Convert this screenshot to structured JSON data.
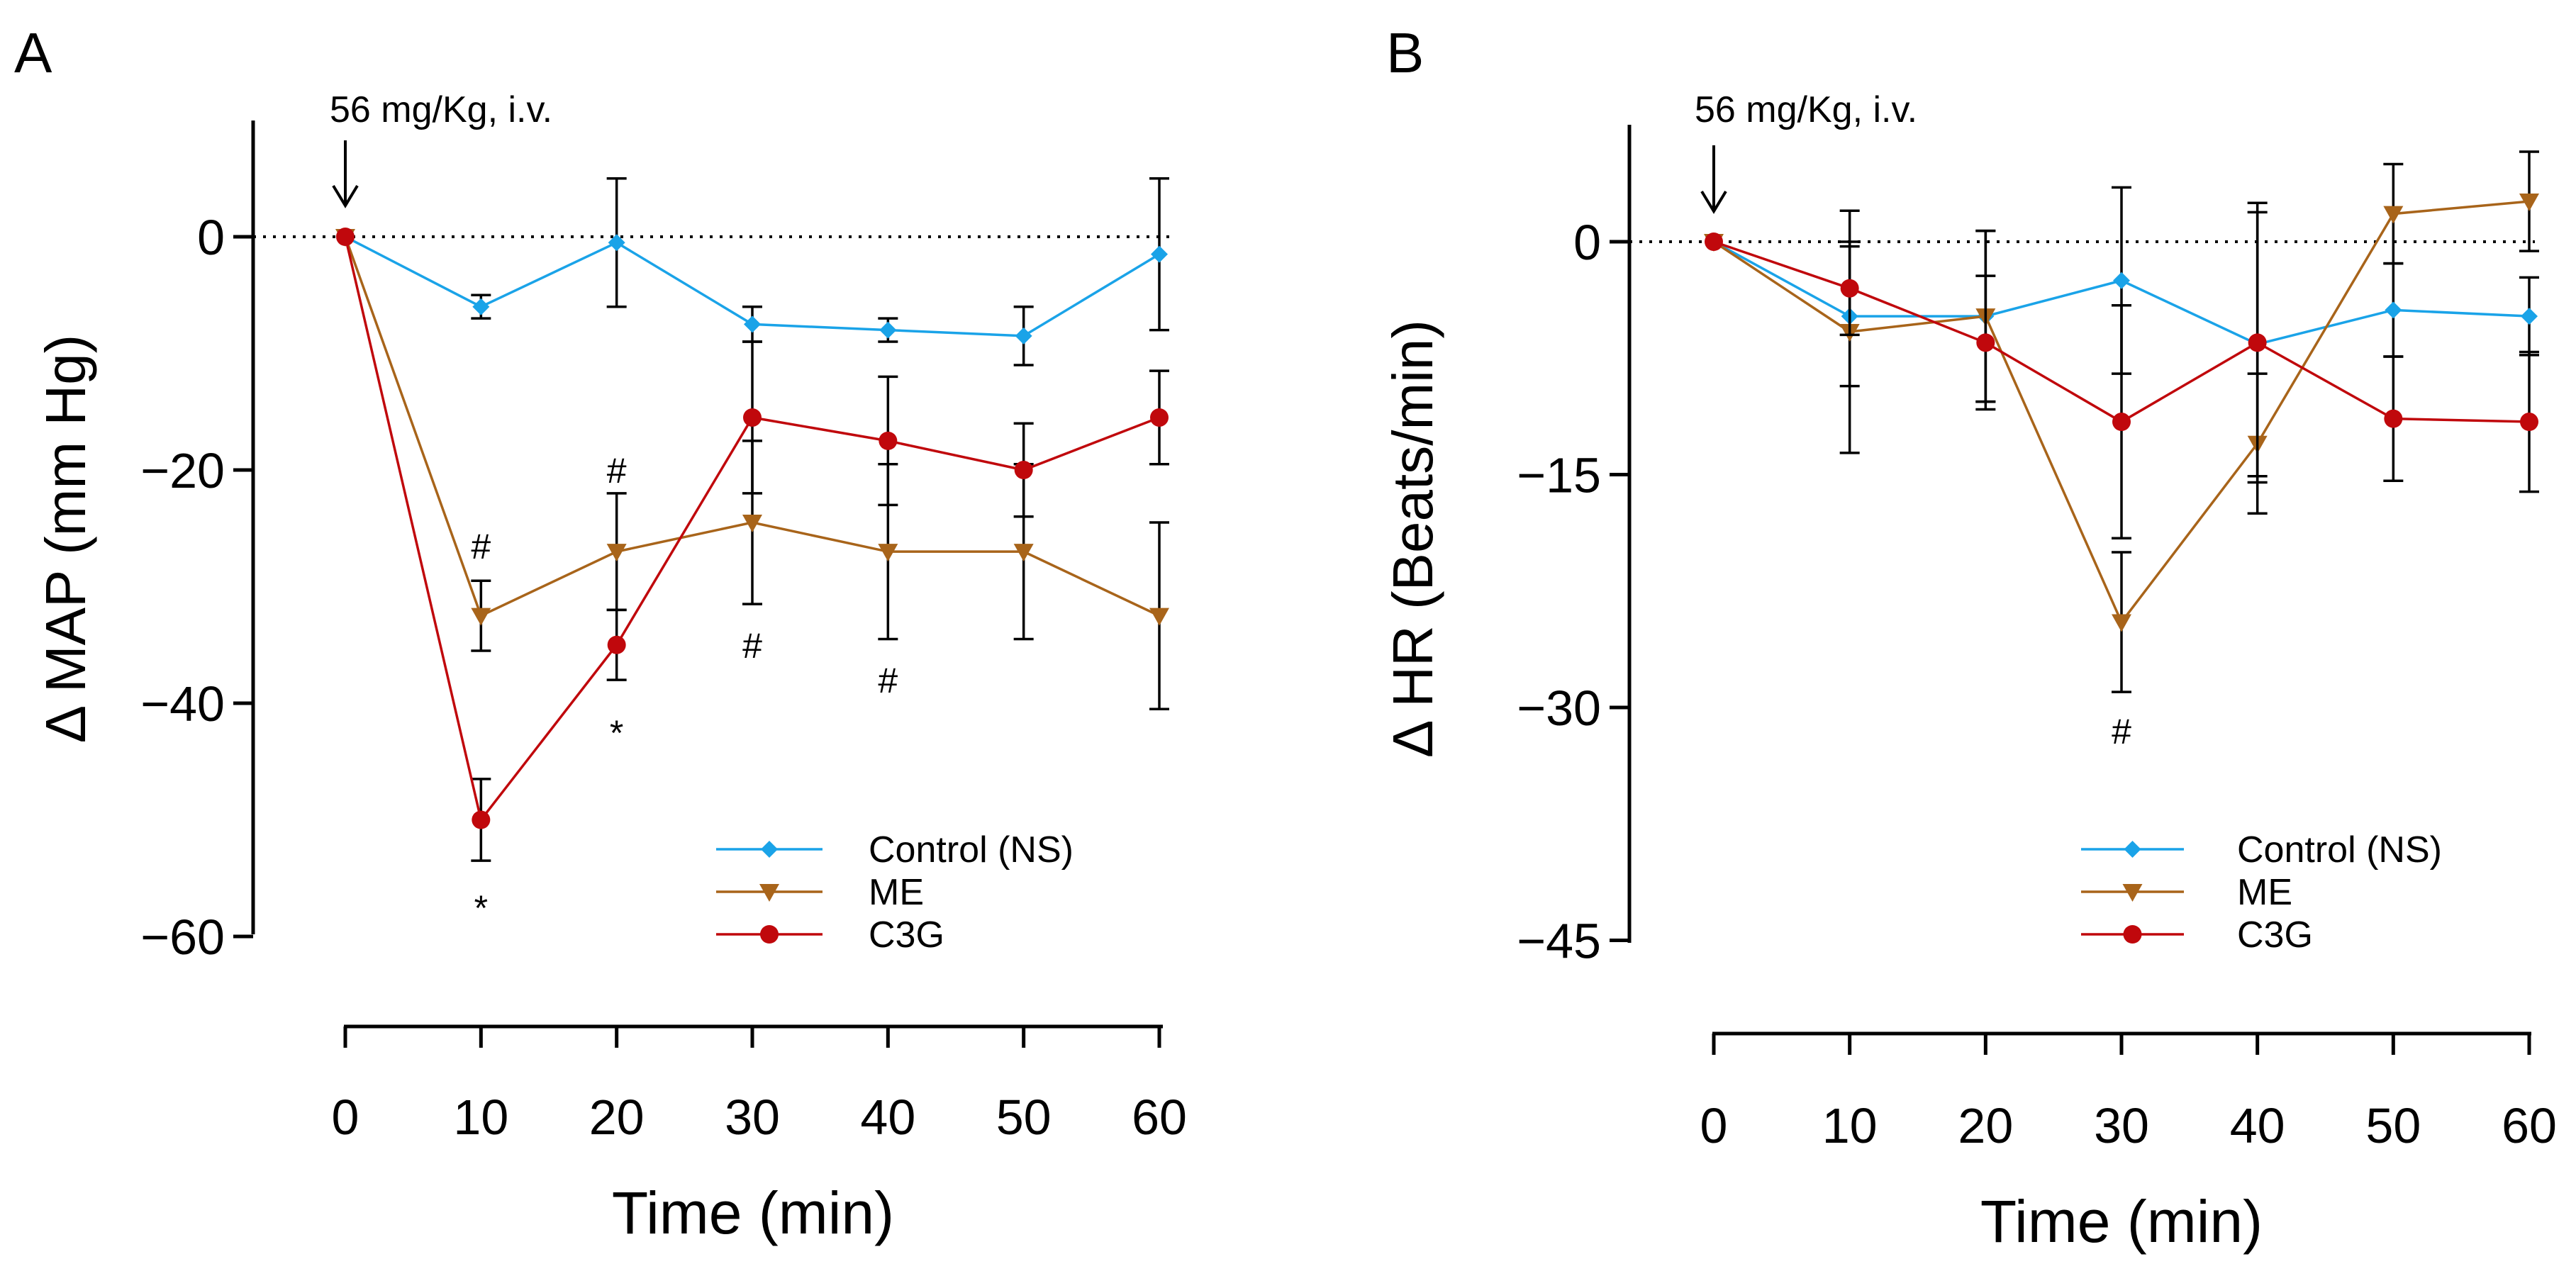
{
  "colors": {
    "control": "#1aa3e8",
    "me": "#a8641a",
    "c3g": "#c0080c"
  },
  "chart_data": [
    {
      "type": "line",
      "panel": "A",
      "annotation": "56 mg/Kg, i.v.",
      "xlabel": "Time (min)",
      "ylabel": "Δ MAP (mm Hg)",
      "x": [
        0,
        10,
        20,
        30,
        40,
        50,
        60
      ],
      "xticks": [
        "0",
        "10",
        "20",
        "30",
        "40",
        "50",
        "60"
      ],
      "yticks": [
        0,
        -20,
        -40,
        -60
      ],
      "ytick_labels": [
        "0",
        "−20",
        "−40",
        "−60"
      ],
      "ylim": [
        -60,
        10
      ],
      "series": [
        {
          "name": "Control (NS)",
          "marker": "diamond",
          "values": [
            0,
            -6,
            -0.5,
            -7.5,
            -8,
            -8.5,
            -1.5
          ],
          "errors": [
            0,
            1,
            5.5,
            1.5,
            1,
            2.5,
            6.5
          ]
        },
        {
          "name": "ME",
          "marker": "triangle-down",
          "values": [
            0,
            -32.5,
            -27,
            -24.5,
            -27,
            -27,
            -32.5
          ],
          "errors": [
            0,
            3,
            5,
            7,
            7.5,
            7.5,
            8
          ]
        },
        {
          "name": "C3G",
          "marker": "circle",
          "values": [
            0,
            -50,
            -35,
            -15.5,
            -17.5,
            -20,
            -15.5
          ],
          "errors": [
            0,
            3.5,
            3,
            6.5,
            5.5,
            4,
            4
          ]
        }
      ],
      "labels": [
        {
          "text": "#",
          "x": 10,
          "y": -26.5
        },
        {
          "text": "*",
          "x": 10,
          "y": -57.5
        },
        {
          "text": "#",
          "x": 20,
          "y": -20
        },
        {
          "text": "*",
          "x": 20,
          "y": -42.5
        },
        {
          "text": "#",
          "x": 30,
          "y": -35
        },
        {
          "text": "#",
          "x": 40,
          "y": -38
        }
      ]
    },
    {
      "type": "line",
      "panel": "B",
      "annotation": "56 mg/Kg, i.v.",
      "xlabel": "Time (min)",
      "ylabel": "Δ HR (Beats/min)",
      "x": [
        0,
        10,
        20,
        30,
        40,
        50,
        60
      ],
      "xticks": [
        "0",
        "10",
        "20",
        "30",
        "40",
        "50",
        "60"
      ],
      "yticks": [
        0,
        -15,
        -30,
        -45
      ],
      "ytick_labels": [
        "0",
        "−15",
        "−30",
        "−45"
      ],
      "ylim": [
        -45,
        7.5
      ],
      "series": [
        {
          "name": "Control (NS)",
          "marker": "diamond",
          "values": [
            0,
            -4.8,
            -4.8,
            -2.5,
            -6.6,
            -4.4,
            -4.8
          ],
          "errors": [
            0,
            4.5,
            5.5,
            6,
            8.5,
            3,
            2.5
          ]
        },
        {
          "name": "ME",
          "marker": "triangle-down",
          "values": [
            0,
            -5.8,
            -4.8,
            -24.5,
            -13,
            1.8,
            2.6
          ],
          "errors": [
            0,
            7.8,
            5.5,
            4.5,
            4.5,
            3.2,
            3.2
          ]
        },
        {
          "name": "C3G",
          "marker": "circle",
          "values": [
            0,
            -3,
            -6.5,
            -11.6,
            -6.5,
            -11.4,
            -11.6
          ],
          "errors": [
            0,
            3,
            4.3,
            7.5,
            9,
            4,
            4.5
          ]
        }
      ],
      "labels": [
        {
          "text": "#",
          "x": 30,
          "y": -31.5
        }
      ]
    }
  ]
}
